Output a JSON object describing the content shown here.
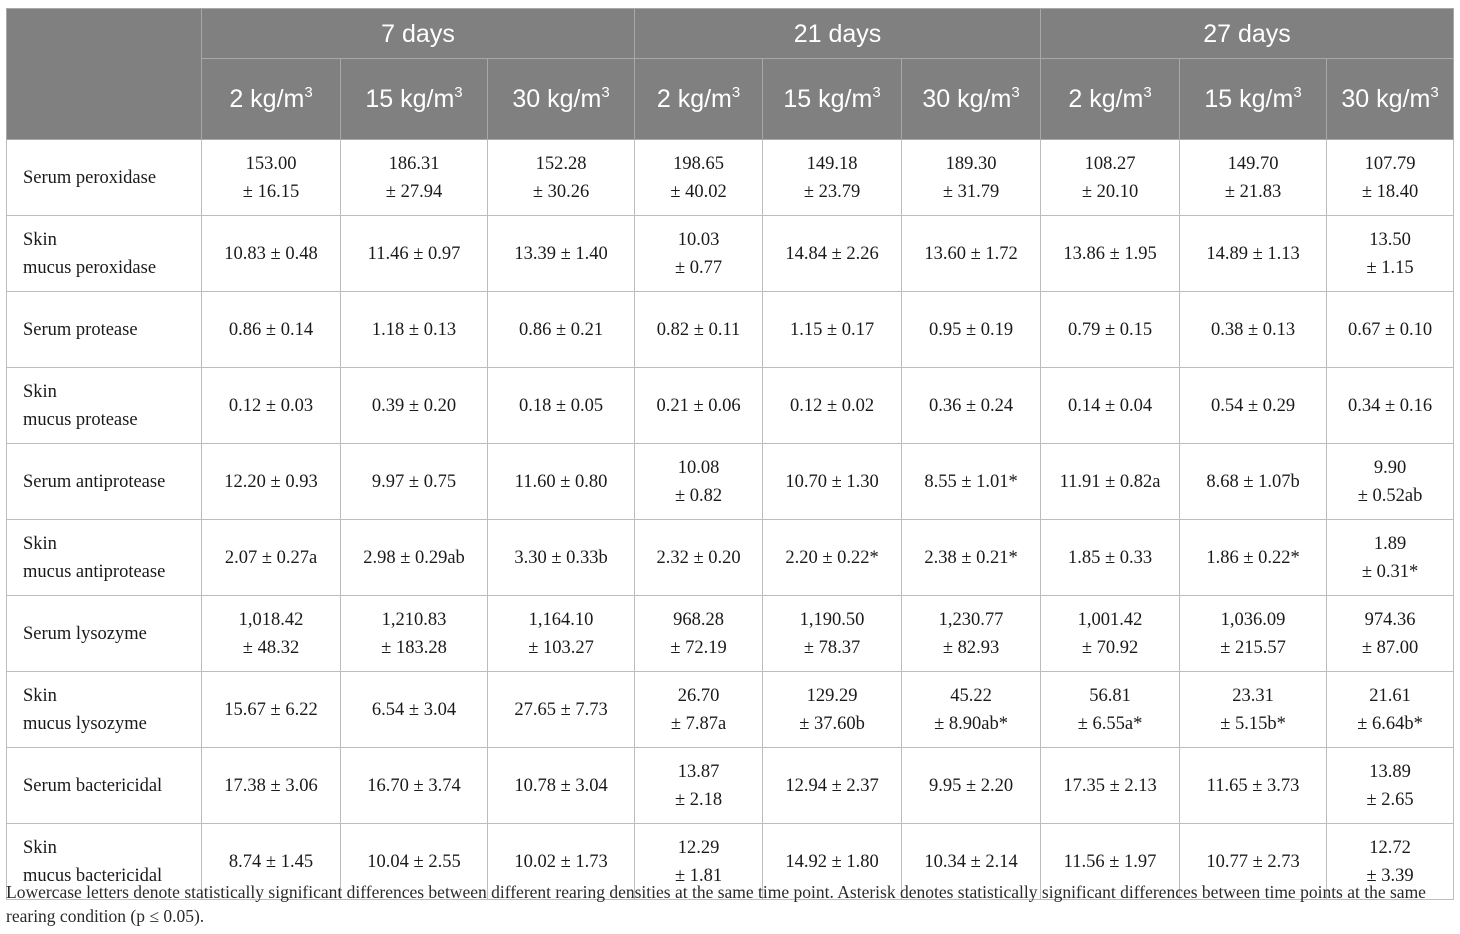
{
  "header": {
    "groups": [
      "7 days",
      "21 days",
      "27 days"
    ],
    "densities": [
      {
        "value": "2 kg/m",
        "sup": "3"
      },
      {
        "value": "15 kg/m",
        "sup": "3"
      },
      {
        "value": "30 kg/m",
        "sup": "3"
      },
      {
        "value": "2 kg/m",
        "sup": "3"
      },
      {
        "value": "15 kg/m",
        "sup": "3"
      },
      {
        "value": "30 kg/m",
        "sup": "3"
      },
      {
        "value": "2 kg/m",
        "sup": "3"
      },
      {
        "value": "15 kg/m",
        "sup": "3"
      },
      {
        "value": "30 kg/m",
        "sup": "3"
      }
    ]
  },
  "rows": [
    {
      "label": [
        "Serum peroxidase"
      ],
      "cells": [
        [
          "153.00",
          "± 16.15"
        ],
        [
          "186.31",
          "± 27.94"
        ],
        [
          "152.28",
          "± 30.26"
        ],
        [
          "198.65",
          "± 40.02"
        ],
        [
          "149.18",
          "± 23.79"
        ],
        [
          "189.30",
          "± 31.79"
        ],
        [
          "108.27",
          "± 20.10"
        ],
        [
          "149.70",
          "± 21.83"
        ],
        [
          "107.79",
          "± 18.40"
        ]
      ]
    },
    {
      "label": [
        "Skin",
        "mucus peroxidase"
      ],
      "cells": [
        [
          "10.83 ± 0.48"
        ],
        [
          "11.46 ± 0.97"
        ],
        [
          "13.39 ± 1.40"
        ],
        [
          "10.03",
          "± 0.77"
        ],
        [
          "14.84 ± 2.26"
        ],
        [
          "13.60 ± 1.72"
        ],
        [
          "13.86 ± 1.95"
        ],
        [
          "14.89 ± 1.13"
        ],
        [
          "13.50",
          "± 1.15"
        ]
      ]
    },
    {
      "label": [
        "Serum protease"
      ],
      "cells": [
        [
          "0.86 ± 0.14"
        ],
        [
          "1.18 ± 0.13"
        ],
        [
          "0.86 ± 0.21"
        ],
        [
          "0.82 ± 0.11"
        ],
        [
          "1.15 ± 0.17"
        ],
        [
          "0.95 ± 0.19"
        ],
        [
          "0.79 ± 0.15"
        ],
        [
          "0.38 ± 0.13"
        ],
        [
          "0.67 ± 0.10"
        ]
      ]
    },
    {
      "label": [
        "Skin",
        "mucus protease"
      ],
      "cells": [
        [
          "0.12 ± 0.03"
        ],
        [
          "0.39 ± 0.20"
        ],
        [
          "0.18 ± 0.05"
        ],
        [
          "0.21 ± 0.06"
        ],
        [
          "0.12 ± 0.02"
        ],
        [
          "0.36 ± 0.24"
        ],
        [
          "0.14 ± 0.04"
        ],
        [
          "0.54 ± 0.29"
        ],
        [
          "0.34 ± 0.16"
        ]
      ]
    },
    {
      "label": [
        "Serum antiprotease"
      ],
      "cells": [
        [
          "12.20 ± 0.93"
        ],
        [
          "9.97 ± 0.75"
        ],
        [
          "11.60 ± 0.80"
        ],
        [
          "10.08",
          "± 0.82"
        ],
        [
          "10.70 ± 1.30"
        ],
        [
          "8.55 ± 1.01*"
        ],
        [
          "11.91 ± 0.82a"
        ],
        [
          "8.68 ± 1.07b"
        ],
        [
          "9.90",
          "± 0.52ab"
        ]
      ]
    },
    {
      "label": [
        "Skin",
        "mucus antiprotease"
      ],
      "cells": [
        [
          "2.07 ± 0.27a"
        ],
        [
          "2.98 ± 0.29ab"
        ],
        [
          "3.30 ± 0.33b"
        ],
        [
          "2.32 ± 0.20"
        ],
        [
          "2.20 ± 0.22*"
        ],
        [
          "2.38 ± 0.21*"
        ],
        [
          "1.85 ± 0.33"
        ],
        [
          "1.86 ± 0.22*"
        ],
        [
          "1.89",
          "± 0.31*"
        ]
      ]
    },
    {
      "label": [
        "Serum lysozyme"
      ],
      "cells": [
        [
          "1,018.42",
          "± 48.32"
        ],
        [
          "1,210.83",
          "± 183.28"
        ],
        [
          "1,164.10",
          "± 103.27"
        ],
        [
          "968.28",
          "± 72.19"
        ],
        [
          "1,190.50",
          "± 78.37"
        ],
        [
          "1,230.77",
          "± 82.93"
        ],
        [
          "1,001.42",
          "± 70.92"
        ],
        [
          "1,036.09",
          "± 215.57"
        ],
        [
          "974.36",
          "± 87.00"
        ]
      ]
    },
    {
      "label": [
        "Skin",
        "mucus lysozyme"
      ],
      "cells": [
        [
          "15.67 ± 6.22"
        ],
        [
          "6.54 ± 3.04"
        ],
        [
          "27.65 ± 7.73"
        ],
        [
          "26.70",
          "± 7.87a"
        ],
        [
          "129.29",
          "± 37.60b"
        ],
        [
          "45.22",
          "± 8.90ab*"
        ],
        [
          "56.81",
          "± 6.55a*"
        ],
        [
          "23.31",
          "± 5.15b*"
        ],
        [
          "21.61",
          "± 6.64b*"
        ]
      ]
    },
    {
      "label": [
        "Serum bactericidal"
      ],
      "cells": [
        [
          "17.38 ± 3.06"
        ],
        [
          "16.70 ± 3.74"
        ],
        [
          "10.78 ± 3.04"
        ],
        [
          "13.87",
          "± 2.18"
        ],
        [
          "12.94 ± 2.37"
        ],
        [
          "9.95 ± 2.20"
        ],
        [
          "17.35 ± 2.13"
        ],
        [
          "11.65 ± 3.73"
        ],
        [
          "13.89",
          "± 2.65"
        ]
      ]
    },
    {
      "label": [
        "Skin",
        "mucus bactericidal"
      ],
      "cells": [
        [
          "8.74 ± 1.45"
        ],
        [
          "10.04 ± 2.55"
        ],
        [
          "10.02 ± 1.73"
        ],
        [
          "12.29",
          "± 1.81"
        ],
        [
          "14.92 ± 1.80"
        ],
        [
          "10.34 ± 2.14"
        ],
        [
          "11.56 ± 1.97"
        ],
        [
          "10.77 ± 2.73"
        ],
        [
          "12.72",
          "± 3.39"
        ]
      ]
    }
  ],
  "footnote": "Lowercase letters denote statistically significant differences between different rearing densities at the same time point. Asterisk denotes statistically significant differences between time points at the same rearing condition (p ≤ 0.05)."
}
